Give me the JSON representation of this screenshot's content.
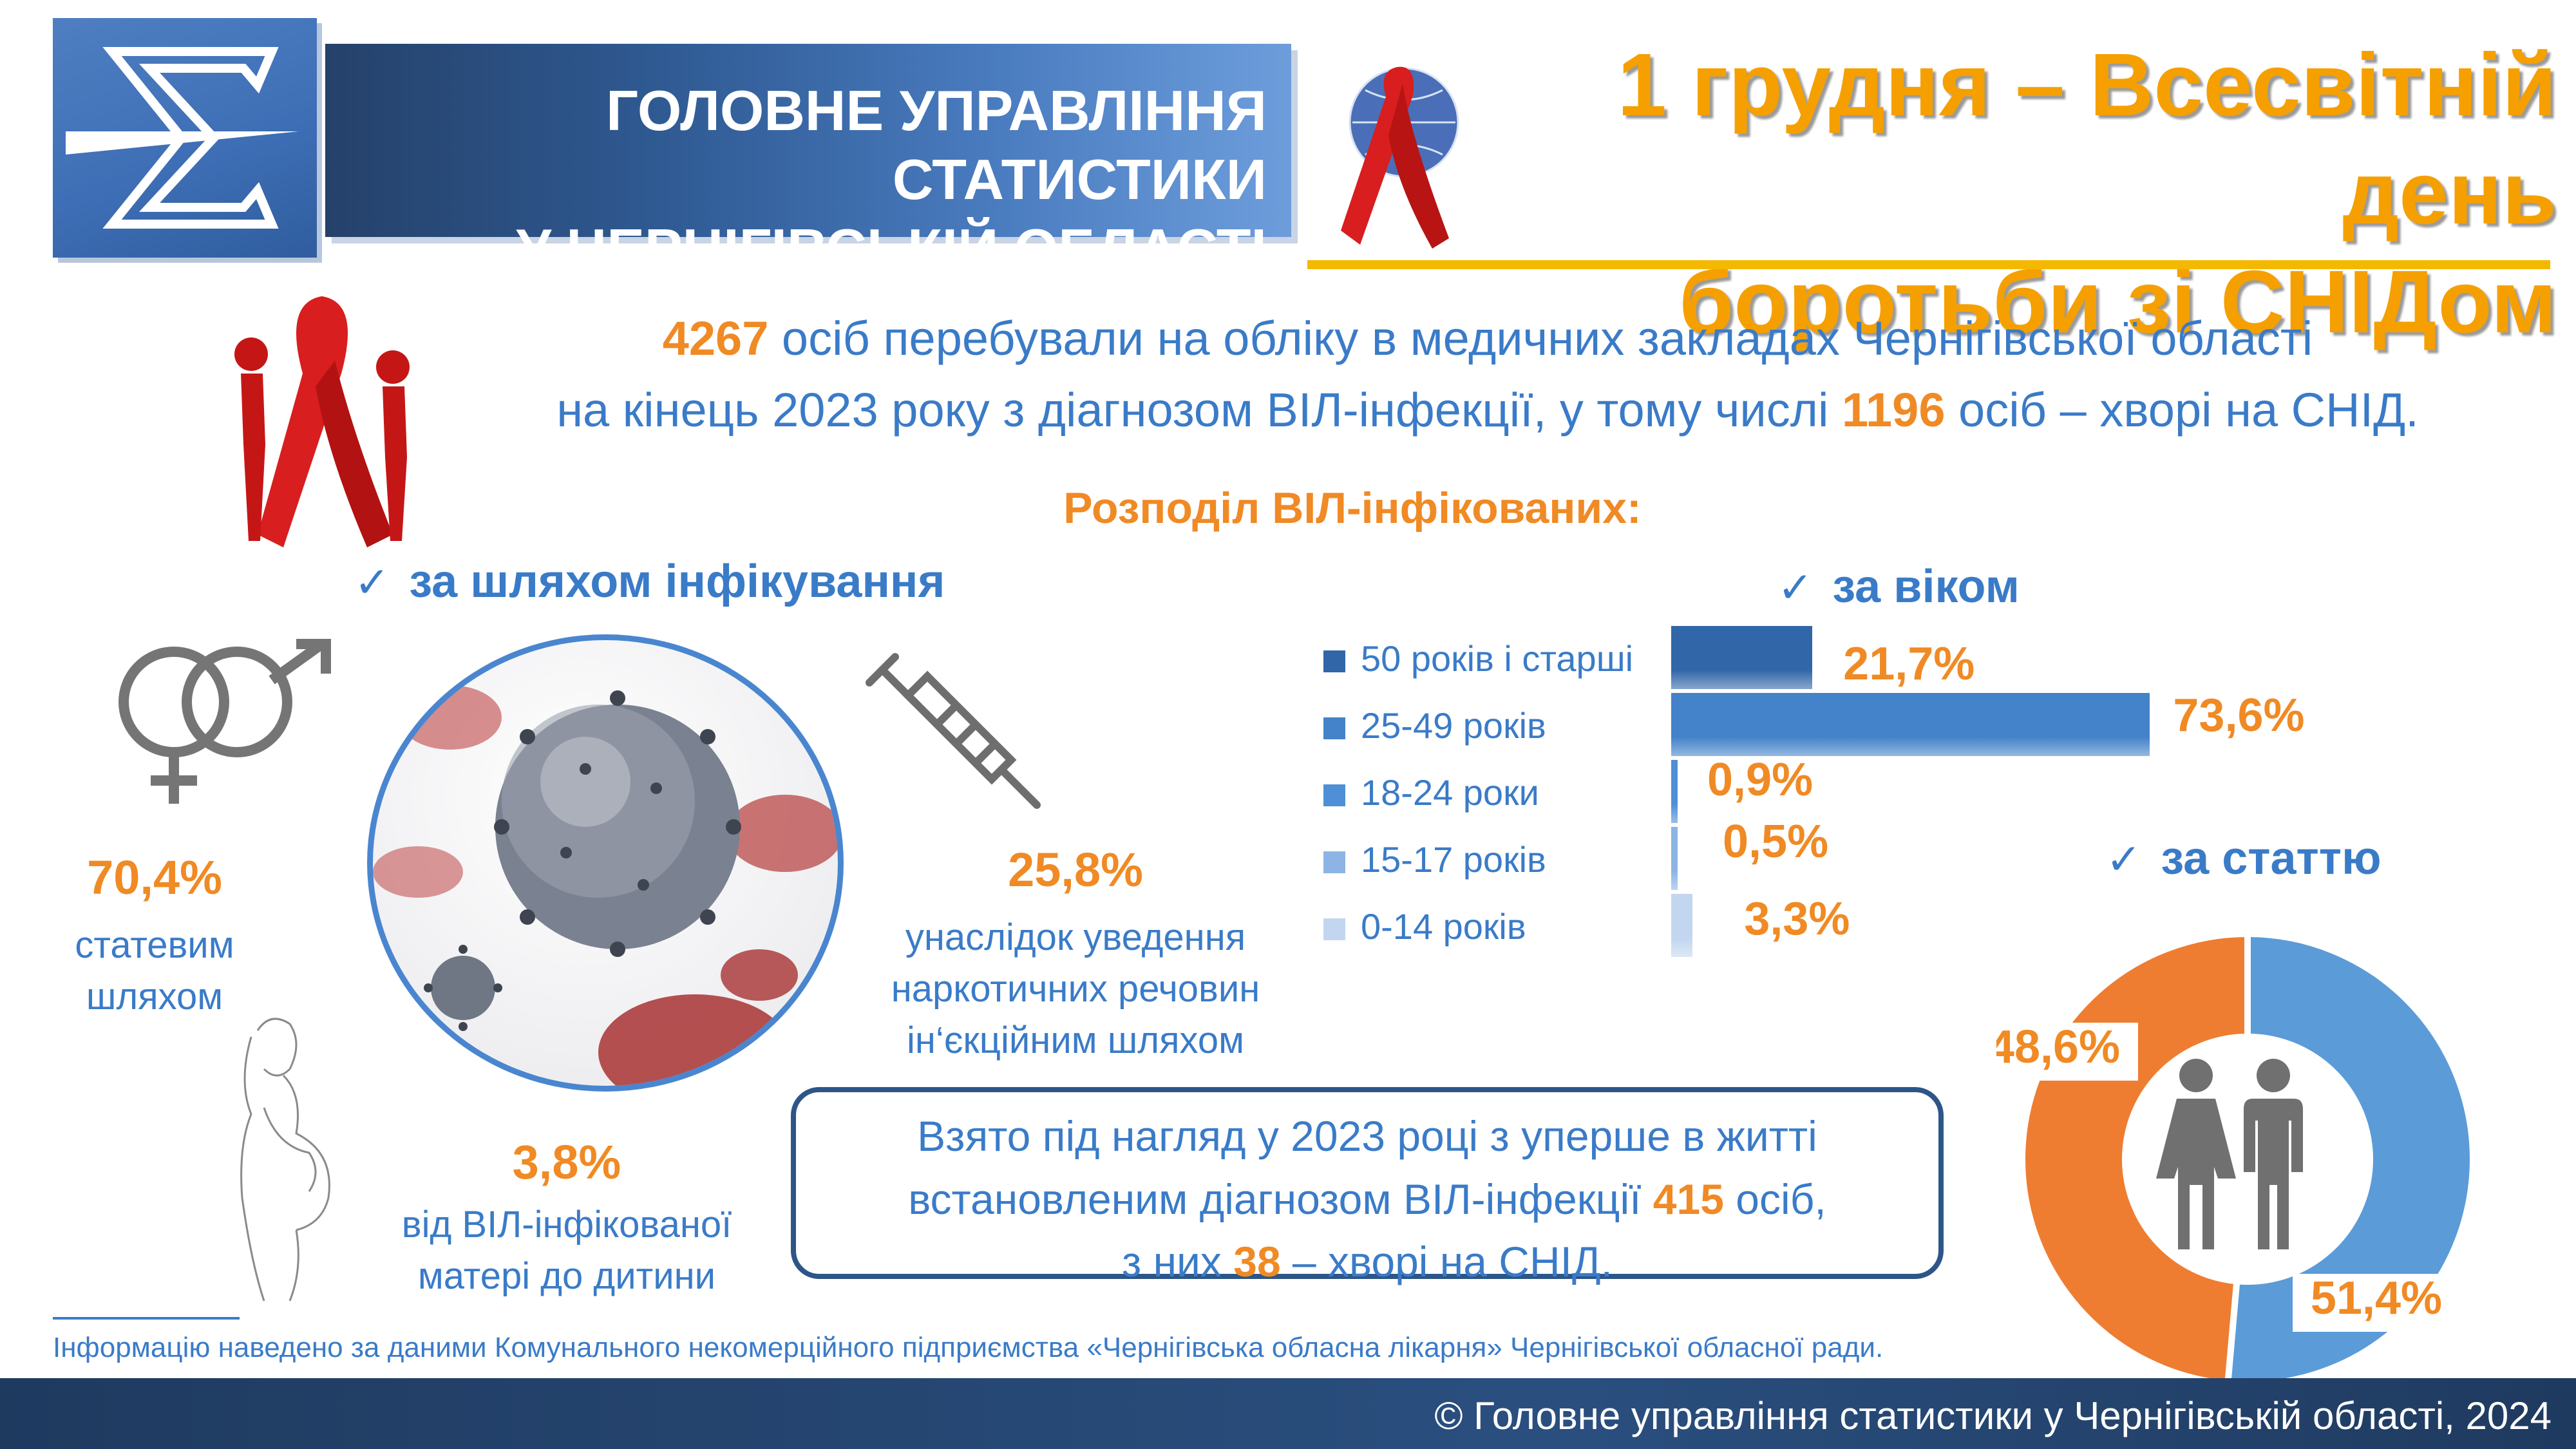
{
  "header": {
    "department": "ГОЛОВНЕ УПРАВЛІННЯ СТАТИСТИКИ\nУ ЧЕРНІГІВСЬКІЙ ОБЛАСТІ",
    "event_title": "1 грудня – Всесвітній день\nборотьби зі СНІДом"
  },
  "intro": {
    "count_total": "4267",
    "text_1": " осіб перебували на обліку в медичних закладах Чернігівської області",
    "text_2": "на кінець 2023 року з діагнозом ВІЛ-інфекції, у тому числі ",
    "count_aids": "1196",
    "text_3": " осіб – хворі на СНІД."
  },
  "distribution_title": "Розподіл ВІЛ-інфікованих:",
  "by_route": {
    "title": "за шляхом інфікування",
    "sexual": {
      "value": "70,4%",
      "caption": "статевим\nшляхом"
    },
    "injection": {
      "value": "25,8%",
      "caption": "унаслідок уведення\nнаркотичних речовин\nін‘єкційним шляхом"
    },
    "mother": {
      "value": "3,8%",
      "caption": "від ВІЛ-інфікованої\nматері до дитини"
    }
  },
  "by_age_title": "за віком",
  "by_gender_title": "за статтю",
  "notice": {
    "line_1": "Взято під нагляд у 2023 році з уперше в житті",
    "line_2a": "встановленим діагнозом ВІЛ-інфекції ",
    "new_cases": "415",
    "line_2b": " осіб,",
    "line_3a": "з них ",
    "new_aids": "38",
    "line_3b": " – хворі на СНІД."
  },
  "footer": {
    "note": "Інформацію наведено за даними Комунального некомерційного підприємства «Чернігівська обласна лікарня» Чернігівської обласної ради.",
    "copyright": "© Головне управління статистики у Чернігівській області, 2024"
  },
  "colors": {
    "accent_blue": "#3a7bc8",
    "accent_orange": "#f08a24",
    "title_gold": "#f5a000",
    "dark_navy": "#2d5687",
    "ribbon_red": "#d81e1e"
  },
  "icons": [
    "sigma-logo-icon",
    "ribbon-globe-icon",
    "ribbon-figures-icon",
    "gender-symbols-icon",
    "syringe-icon",
    "pregnant-woman-icon",
    "virus-image",
    "woman-man-icon",
    "checkmark-icon"
  ],
  "chart_data": [
    {
      "type": "bar",
      "orientation": "horizontal",
      "title": "за віком",
      "categories": [
        "50 років і старші",
        "25-49 років",
        "18-24 роки",
        "15-17 років",
        "0-14 років"
      ],
      "values": [
        21.7,
        73.6,
        0.9,
        0.5,
        3.3
      ],
      "value_labels": [
        "21,7%",
        "73,6%",
        "0,9%",
        "0,5%",
        "3,3%"
      ],
      "colors": [
        "#3166a8",
        "#4482c9",
        "#4f8fd6",
        "#8db4e5",
        "#c2d6ef"
      ],
      "legend": "left",
      "grid": false
    },
    {
      "type": "pie",
      "style": "donut",
      "title": "за статтю",
      "values": [
        51.4,
        48.6
      ],
      "value_labels": [
        "51,4%",
        "48,6%"
      ],
      "colors": [
        "#5b9bd8",
        "#ee7d31"
      ]
    }
  ]
}
